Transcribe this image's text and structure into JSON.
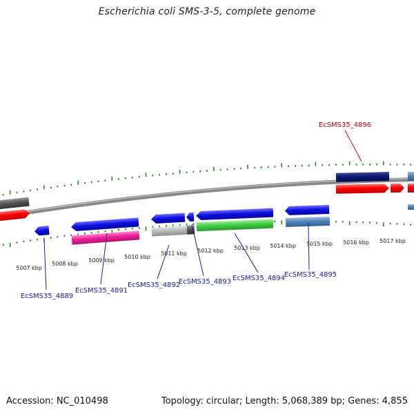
{
  "title": "Escherichia coli SMS-3-5, complete genome",
  "footer": {
    "accession": "Accession: NC_010498",
    "summary": "Topology: circular; Length: 5,068,389 bp; Genes: 4,855"
  },
  "scale_labels": [
    "5007 kbp",
    "5008 kbp",
    "5009 kbp",
    "5010 kbp",
    "5011 kbp",
    "5012 kbp",
    "5013 kbp",
    "5014 kbp",
    "5015 kbp",
    "5016 kbp",
    "5017 kbp"
  ],
  "gene_labels": [
    {
      "text": "EcSMS35_4896",
      "color": "#cc0000"
    },
    {
      "text": "EcSMS35_4889",
      "color": "#1a1aaa"
    },
    {
      "text": "EcSMS35_4891",
      "color": "#1a1aaa"
    },
    {
      "text": "EcSMS35_4892",
      "color": "#1a1aaa"
    },
    {
      "text": "EcSMS35_4893",
      "color": "#1a1aaa"
    },
    {
      "text": "EcSMS35_4894",
      "color": "#1a1aaa"
    },
    {
      "text": "EcSMS35_4895",
      "color": "#1a1aaa"
    }
  ],
  "colors": {
    "backbone": "#888888",
    "tick": "#1f8a1f",
    "red": "#ff0000",
    "navy": "#0a1670",
    "blue": "#1010e0",
    "magenta": "#ee2299",
    "green": "#44cc44",
    "steel": "#4f84b8",
    "gray": "#bbbbbb",
    "darkgray": "#555555"
  }
}
